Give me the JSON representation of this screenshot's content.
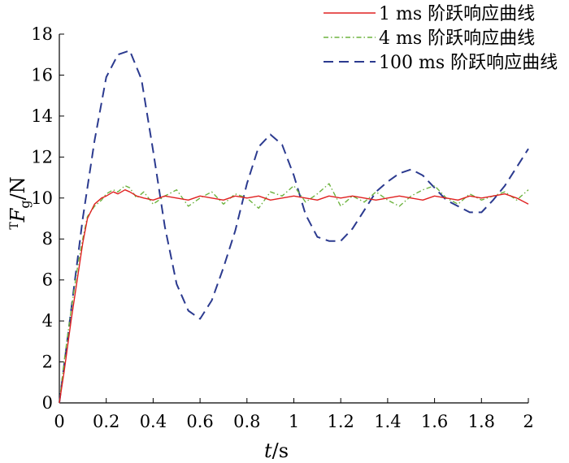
{
  "chart_data": {
    "type": "line",
    "xlabel_italic": "t",
    "xlabel_unit": "/s",
    "ylabel_prefix": "T",
    "ylabel_italic": "F",
    "ylabel_sub": "g",
    "ylabel_unit": "/N",
    "xlim": [
      0,
      2
    ],
    "ylim": [
      0,
      18
    ],
    "xticks": [
      0,
      0.2,
      0.4,
      0.6,
      0.8,
      1,
      1.2,
      1.4,
      1.6,
      1.8,
      2
    ],
    "xtick_labels": [
      "0",
      "0.2",
      "0.4",
      "0.6",
      "0.8",
      "1",
      "1.2",
      "1.4",
      "1.6",
      "1.8",
      "2"
    ],
    "yticks": [
      0,
      2,
      4,
      6,
      8,
      10,
      12,
      14,
      16,
      18
    ],
    "ytick_labels": [
      "0",
      "2",
      "4",
      "6",
      "8",
      "10",
      "12",
      "14",
      "16",
      "18"
    ],
    "grid": false,
    "legend_position": "top-right",
    "series": [
      {
        "name": "1 ms 阶跃响应曲线",
        "color": "#e02020",
        "style": "solid",
        "x": [
          0,
          0.02,
          0.05,
          0.08,
          0.1,
          0.12,
          0.15,
          0.18,
          0.2,
          0.23,
          0.25,
          0.28,
          0.3,
          0.33,
          0.36,
          0.4,
          0.45,
          0.5,
          0.55,
          0.6,
          0.65,
          0.7,
          0.75,
          0.8,
          0.85,
          0.9,
          0.95,
          1.0,
          1.05,
          1.1,
          1.15,
          1.2,
          1.25,
          1.3,
          1.35,
          1.4,
          1.45,
          1.5,
          1.55,
          1.6,
          1.65,
          1.7,
          1.75,
          1.8,
          1.85,
          1.9,
          1.95,
          2.0
        ],
        "values": [
          0,
          1.5,
          4.0,
          6.3,
          7.8,
          9.0,
          9.7,
          10.0,
          10.1,
          10.3,
          10.2,
          10.4,
          10.3,
          10.1,
          10.0,
          9.9,
          10.1,
          10.0,
          9.9,
          10.1,
          10.0,
          9.9,
          10.1,
          10.0,
          10.1,
          9.9,
          10.0,
          10.1,
          10.0,
          9.9,
          10.1,
          10.0,
          10.1,
          10.0,
          9.9,
          10.0,
          10.1,
          10.0,
          9.9,
          10.1,
          10.0,
          9.9,
          10.1,
          10.0,
          10.1,
          10.2,
          10.0,
          9.7
        ]
      },
      {
        "name": "4 ms 阶跃响应曲线",
        "color": "#6db33f",
        "style": "dashdot",
        "x": [
          0,
          0.02,
          0.05,
          0.08,
          0.1,
          0.12,
          0.15,
          0.18,
          0.2,
          0.23,
          0.25,
          0.28,
          0.3,
          0.33,
          0.36,
          0.4,
          0.45,
          0.5,
          0.55,
          0.6,
          0.65,
          0.7,
          0.75,
          0.8,
          0.85,
          0.9,
          0.95,
          1.0,
          1.05,
          1.1,
          1.15,
          1.2,
          1.25,
          1.3,
          1.35,
          1.4,
          1.45,
          1.5,
          1.55,
          1.6,
          1.65,
          1.7,
          1.75,
          1.8,
          1.85,
          1.9,
          1.95,
          2.0
        ],
        "values": [
          0,
          2.0,
          4.5,
          6.8,
          8.0,
          9.1,
          9.6,
          9.9,
          10.2,
          10.4,
          10.3,
          10.6,
          10.5,
          10.0,
          10.3,
          9.7,
          10.1,
          10.4,
          9.6,
          10.0,
          10.3,
          9.7,
          10.2,
          10.0,
          9.5,
          10.3,
          10.1,
          10.6,
          9.8,
          10.2,
          10.7,
          9.6,
          10.1,
          9.8,
          10.3,
          9.9,
          9.6,
          10.1,
          10.4,
          10.6,
          10.0,
          9.7,
          10.2,
          9.9,
          10.1,
          10.3,
          9.9,
          10.4
        ]
      },
      {
        "name": "100 ms 阶跃响应曲线",
        "color": "#2b3a8f",
        "style": "dashed",
        "x": [
          0,
          0.05,
          0.1,
          0.15,
          0.2,
          0.25,
          0.3,
          0.35,
          0.4,
          0.45,
          0.5,
          0.55,
          0.6,
          0.65,
          0.7,
          0.75,
          0.8,
          0.85,
          0.9,
          0.95,
          1.0,
          1.05,
          1.1,
          1.15,
          1.2,
          1.25,
          1.3,
          1.35,
          1.4,
          1.45,
          1.5,
          1.55,
          1.6,
          1.65,
          1.7,
          1.75,
          1.8,
          1.85,
          1.9,
          1.95,
          2.0
        ],
        "values": [
          0,
          4.5,
          9.0,
          12.8,
          15.9,
          17.0,
          17.2,
          15.8,
          12.3,
          8.6,
          5.8,
          4.5,
          4.1,
          5.0,
          6.6,
          8.4,
          10.7,
          12.5,
          13.1,
          12.6,
          11.1,
          9.2,
          8.1,
          7.9,
          7.9,
          8.5,
          9.4,
          10.3,
          10.8,
          11.2,
          11.4,
          11.1,
          10.5,
          9.9,
          9.6,
          9.3,
          9.3,
          9.9,
          10.6,
          11.5,
          12.4
        ]
      }
    ]
  }
}
